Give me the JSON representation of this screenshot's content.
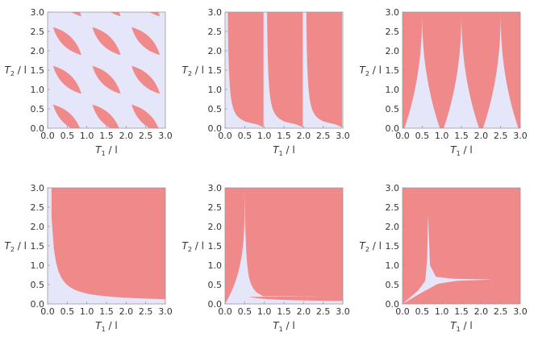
{
  "colors": {
    "region_a": "#f08a8a",
    "region_b": "#e6e6fa",
    "frame": "#9a9a9a",
    "text": "#333333"
  },
  "axis_text": {
    "x_symbol": "T",
    "x_sub": "1",
    "x_rest": " / l",
    "y_symbol": "T",
    "y_sub": "2",
    "y_rest": " / l"
  },
  "chart_data": [
    {
      "type": "heatmap",
      "panel": 1,
      "xlim": [
        0,
        3
      ],
      "ylim": [
        0,
        3
      ],
      "xticks": [
        "0.0",
        "0.5",
        "1.0",
        "1.5",
        "2.0",
        "2.5",
        "3.0"
      ],
      "yticks": [
        "0.0",
        "0.5",
        "1.0",
        "1.5",
        "2.0",
        "2.5",
        "3.0"
      ],
      "grid": false,
      "regions": "diagonal lens-shaped red regions repeating with period 1 on a lavender background"
    },
    {
      "type": "heatmap",
      "panel": 2,
      "xlim": [
        0,
        3
      ],
      "ylim": [
        0,
        3
      ],
      "xticks": [
        "0.0",
        "0.5",
        "1.0",
        "1.5",
        "2.0",
        "2.5",
        "3.0"
      ],
      "yticks": [
        "0.0",
        "0.5",
        "1.0",
        "1.5",
        "2.0",
        "2.5",
        "3.0"
      ],
      "grid": false,
      "regions": "red regions bounded by hyperbolic curves, repeating with period 1 in T1"
    },
    {
      "type": "heatmap",
      "panel": 3,
      "xlim": [
        0,
        3
      ],
      "ylim": [
        0,
        3
      ],
      "xticks": [
        "0.0",
        "0.5",
        "1.0",
        "1.5",
        "2.0",
        "2.5",
        "3.0"
      ],
      "yticks": [
        "0.0",
        "0.5",
        "1.0",
        "1.5",
        "2.0",
        "2.5",
        "3.0"
      ],
      "grid": false,
      "regions": "red with lavender cusp-shaped regions at T1 = 0.5, 1.5, 2.5"
    },
    {
      "type": "heatmap",
      "panel": 4,
      "xlim": [
        0,
        3
      ],
      "ylim": [
        0,
        3
      ],
      "xticks": [
        "0.0",
        "0.5",
        "1.0",
        "1.5",
        "2.0",
        "2.5",
        "3.0"
      ],
      "yticks": [
        "0.0",
        "0.5",
        "1.0",
        "1.5",
        "2.0",
        "2.5",
        "3.0"
      ],
      "grid": false,
      "regions": "red above a single hyperbola-like curve, lavender near the axes"
    },
    {
      "type": "heatmap",
      "panel": 5,
      "xlim": [
        0,
        3
      ],
      "ylim": [
        0,
        3
      ],
      "xticks": [
        "0.0",
        "0.5",
        "1.0",
        "1.5",
        "2.0",
        "2.5",
        "3.0"
      ],
      "yticks": [
        "0.0",
        "0.5",
        "1.0",
        "1.5",
        "2.0",
        "2.5",
        "3.0"
      ],
      "grid": false,
      "regions": "red with a lavender cusp at T1 = 0.5 and lavender strip near T2 = 0"
    },
    {
      "type": "heatmap",
      "panel": 6,
      "xlim": [
        0,
        3
      ],
      "ylim": [
        0,
        3
      ],
      "xticks": [
        "0.0",
        "0.5",
        "1.0",
        "1.5",
        "2.0",
        "2.5",
        "3.0"
      ],
      "yticks": [
        "0.0",
        "0.5",
        "1.0",
        "1.5",
        "2.0",
        "2.5",
        "3.0"
      ],
      "grid": false,
      "regions": "red with a small lavender wedge starting at the origin, cusp near T1 = 0.65, tail toward T1 = 2.3 at T2 = 0.63"
    }
  ]
}
